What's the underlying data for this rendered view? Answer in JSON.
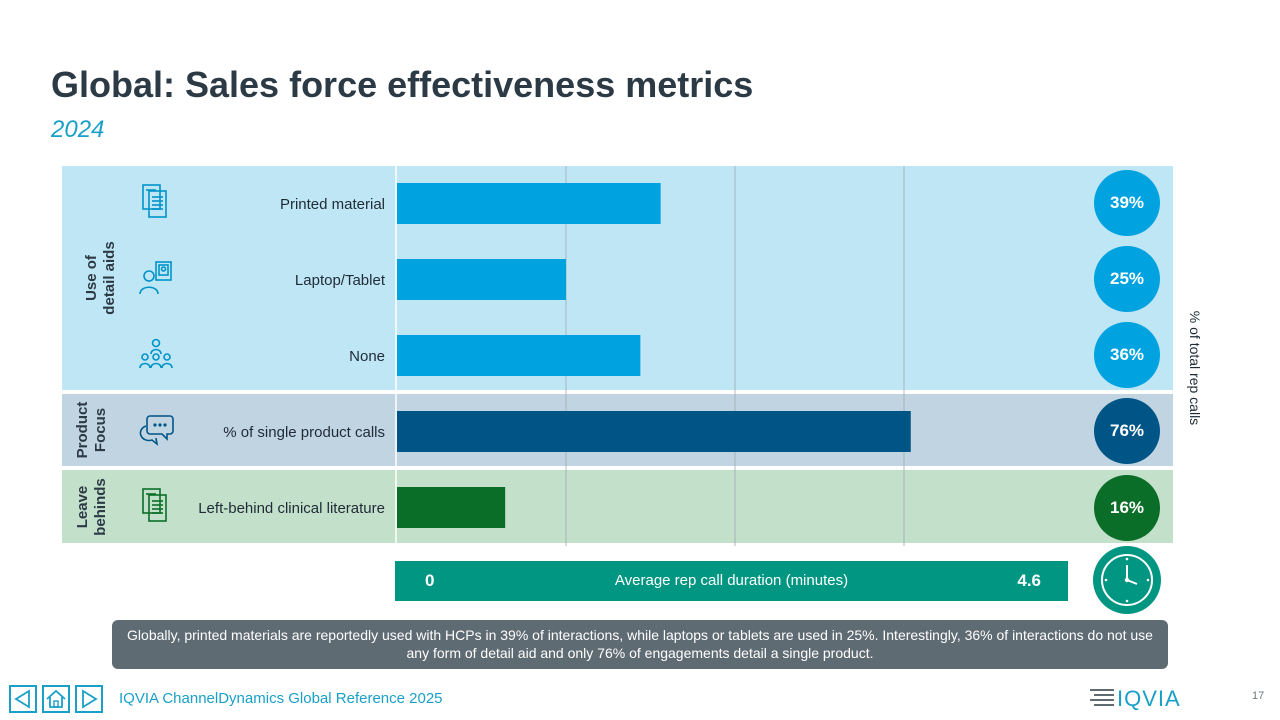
{
  "title": "Global: Sales force effectiveness metrics",
  "subtitle": "2024",
  "groups": {
    "aids": "Use of detail aids",
    "aids_line1": "Use of",
    "aids_line2": "detail aids",
    "focus_line1": "Product",
    "focus_line2": "Focus",
    "leave_line1": "Leave",
    "leave_line2": "behinds"
  },
  "colors": {
    "aids_bar": "#00a3e0",
    "focus_bar": "#005587",
    "leave_bar": "#0b6e28",
    "duration": "#009682"
  },
  "icons": [
    "document-stack-icon",
    "person-tablet-icon",
    "group-people-icon",
    "chat-bubbles-icon",
    "document-check-icon",
    "clock-icon"
  ],
  "chart_data": {
    "type": "bar",
    "orientation": "horizontal",
    "categories": [
      "Printed material",
      "Laptop/Tablet",
      "None",
      "% of single product calls",
      "Left-behind clinical literature"
    ],
    "values": [
      39,
      25,
      36,
      76,
      16
    ],
    "value_labels": [
      "39%",
      "25%",
      "36%",
      "76%",
      "16%"
    ],
    "groups": [
      "Use of detail aids",
      "Use of detail aids",
      "Use of detail aids",
      "Product Focus",
      "Leave behinds"
    ],
    "ylabel": "% of total rep calls",
    "xlim": [
      0,
      100
    ],
    "grid": true
  },
  "duration": {
    "min": "0",
    "label": "Average rep call duration (minutes)",
    "value": "4.6"
  },
  "note": "Globally, printed materials are reportedly used with HCPs in 39% of interactions, while laptops or tablets are used in 25%. Interestingly, 36% of interactions do not use any form of detail aid and only 76% of engagements detail a single product.",
  "footer": "IQVIA ChannelDynamics Global Reference 2025",
  "logo_text": "IQVIA",
  "page_number": "17"
}
